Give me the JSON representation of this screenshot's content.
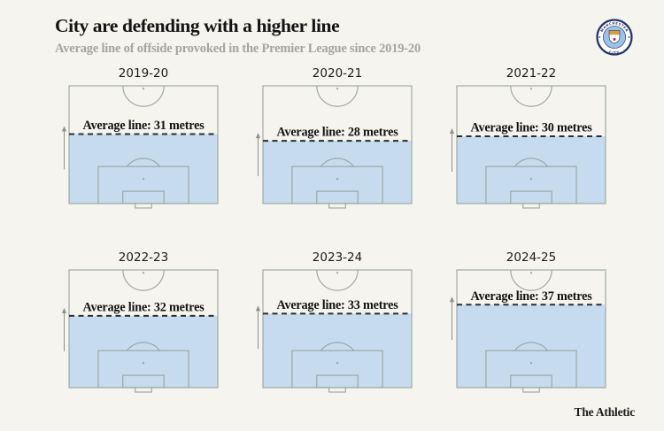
{
  "header": {
    "title": "City are defending with a higher line",
    "subtitle": "Average line of offside provoked in the Premier League since 2019-20"
  },
  "badge": {
    "top_text": "MANCHESTER",
    "bottom_text": "CITY"
  },
  "footer": {
    "brand": "The Athletic"
  },
  "chart_data": {
    "type": "pitch-small-multiples",
    "title": "City are defending with a higher line",
    "subtitle": "Average line of offside provoked in the Premier League since 2019-20",
    "unit": "metres",
    "pitch_half_length_m": 52.5,
    "note": "Each half-pitch is shaded from the goal line up to the average offside line; dashed line marks the average line, arrow points toward halfway line",
    "categories": [
      "2019-20",
      "2020-21",
      "2021-22",
      "2022-23",
      "2023-24",
      "2024-25"
    ],
    "values": [
      31,
      28,
      30,
      32,
      33,
      37
    ],
    "panels": [
      {
        "season": "2019-20",
        "value": 31,
        "label": "Average line: 31 metres"
      },
      {
        "season": "2020-21",
        "value": 28,
        "label": "Average line: 28 metres"
      },
      {
        "season": "2021-22",
        "value": 30,
        "label": "Average line: 30 metres"
      },
      {
        "season": "2022-23",
        "value": 32,
        "label": "Average line: 32 metres"
      },
      {
        "season": "2023-24",
        "value": 33,
        "label": "Average line: 33 metres"
      },
      {
        "season": "2024-25",
        "value": 37,
        "label": "Average line: 37 metres"
      }
    ]
  },
  "colors": {
    "background": "#f5f4ee",
    "pitch_fill": "#c6dbee",
    "pitch_line": "#98a39f",
    "average_line": "#2e2e2e",
    "arrow": "#8f9089",
    "title": "#131313",
    "subtitle": "#a6a49b",
    "crest_navy": "#24356b",
    "crest_sky": "#9cc3e4",
    "crest_gold": "#d5a13d",
    "crest_red": "#c8102e"
  }
}
